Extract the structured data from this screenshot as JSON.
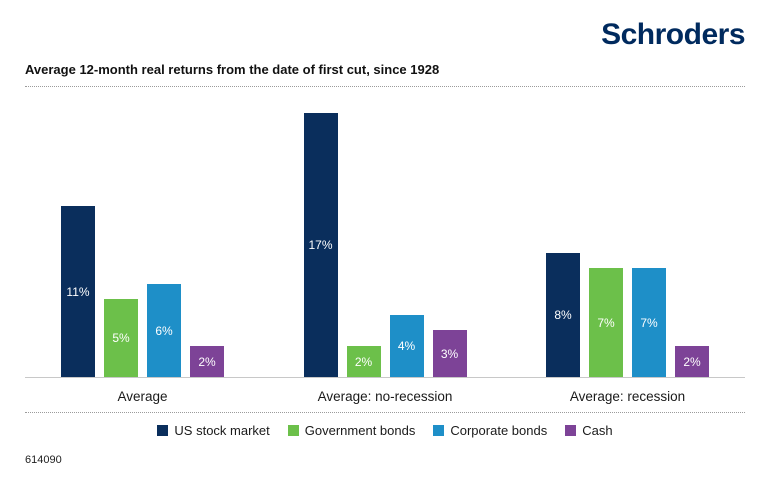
{
  "header": {
    "logo_text": "Schroders",
    "brand_color": "#002a5e"
  },
  "chart_data": {
    "type": "bar",
    "title": "Average 12-month real returns from the date of first cut, since 1928",
    "categories": [
      "Average",
      "Average: no-recession",
      "Average: recession"
    ],
    "series": [
      {
        "name": "US stock market",
        "color": "#0a2e5c",
        "values": [
          11,
          17,
          8
        ]
      },
      {
        "name": "Government bonds",
        "color": "#6cc04a",
        "values": [
          5,
          2,
          7
        ]
      },
      {
        "name": "Corporate bonds",
        "color": "#1e8fc8",
        "values": [
          6,
          4,
          7
        ]
      },
      {
        "name": "Cash",
        "color": "#7d4397",
        "values": [
          2,
          3,
          2
        ]
      }
    ],
    "value_suffix": "%",
    "ylim": [
      0,
      18
    ],
    "grid": false,
    "legend_position": "bottom",
    "value_labels": "inside-bars-white"
  },
  "footer": {
    "code": "614090"
  }
}
